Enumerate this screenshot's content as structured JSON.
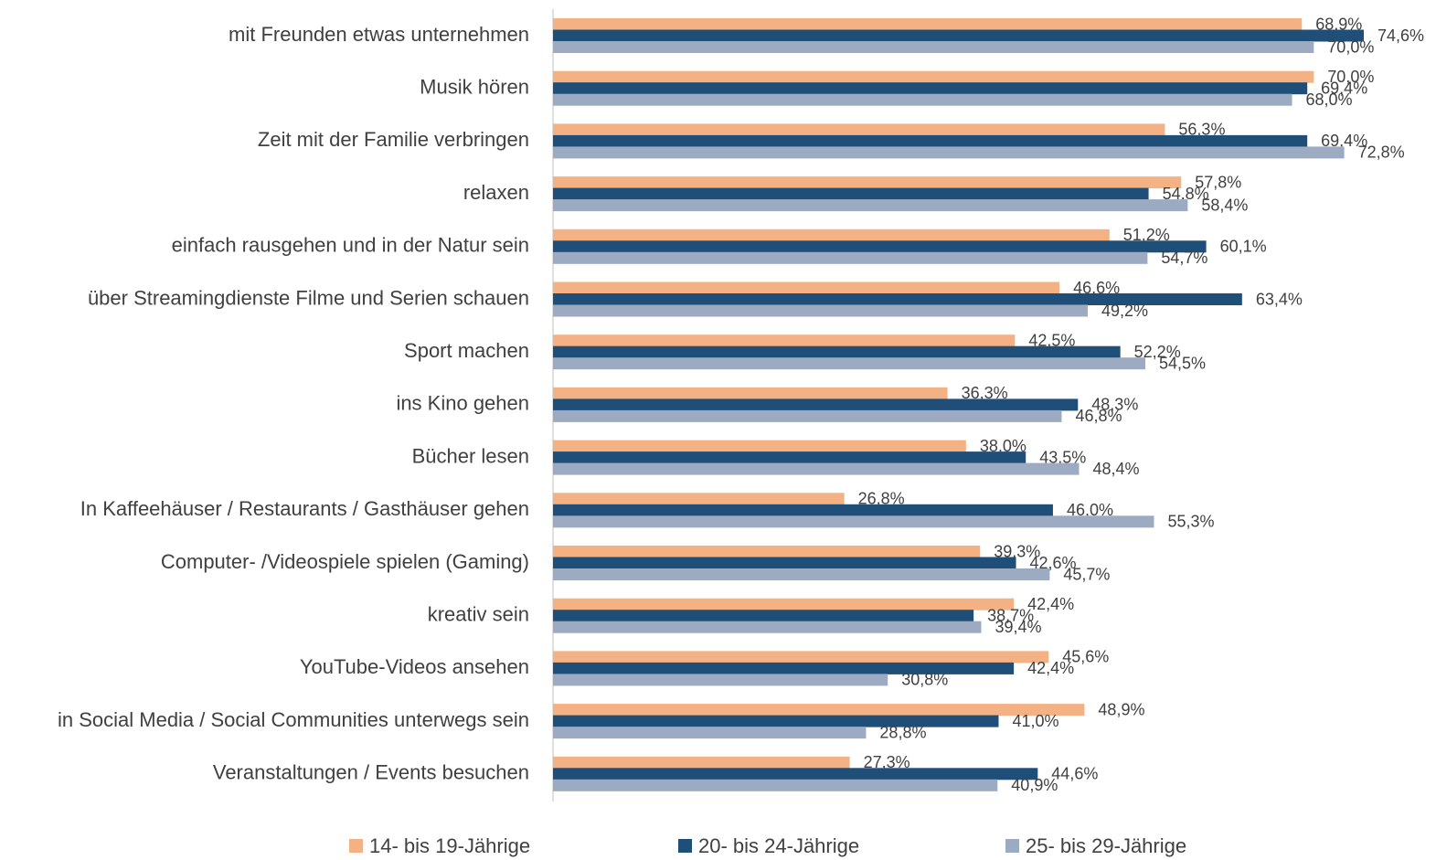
{
  "chart_data": {
    "type": "bar",
    "orientation": "horizontal",
    "categories": [
      "mit Freunden etwas unternehmen",
      "Musik hören",
      "Zeit mit der Familie verbringen",
      "relaxen",
      "einfach rausgehen und in der Natur sein",
      "über Streamingdienste Filme und Serien schauen",
      "Sport machen",
      "ins Kino gehen",
      "Bücher lesen",
      "In Kaffeehäuser / Restaurants / Gasthäuser gehen",
      "Computer- /Videospiele spielen (Gaming)",
      "kreativ sein",
      "YouTube-Videos ansehen",
      "in Social Media / Social Communities unterwegs sein",
      "Veranstaltungen / Events besuchen"
    ],
    "series": [
      {
        "name": "14- bis 19-Jährige",
        "color": "#f4b183",
        "values": [
          68.9,
          70.0,
          56.3,
          57.8,
          51.2,
          46.6,
          42.5,
          36.3,
          38.0,
          26.8,
          39.3,
          42.4,
          45.6,
          48.9,
          27.3
        ],
        "value_labels": [
          "68,9%",
          "70,0%",
          "56,3%",
          "57,8%",
          "51,2%",
          "46,6%",
          "42,5%",
          "36,3%",
          "38,0%",
          "26,8%",
          "39,3%",
          "42,4%",
          "45,6%",
          "48,9%",
          "27,3%"
        ]
      },
      {
        "name": "20- bis 24-Jährige",
        "color": "#1f4e79",
        "values": [
          74.6,
          69.4,
          69.4,
          54.8,
          60.1,
          63.4,
          52.2,
          48.3,
          43.5,
          46.0,
          42.6,
          38.7,
          42.4,
          41.0,
          44.6
        ],
        "value_labels": [
          "74,6%",
          "69,4%",
          "69,4%",
          "54,8%",
          "60,1%",
          "63,4%",
          "52,2%",
          "48,3%",
          "43,5%",
          "46,0%",
          "42,6%",
          "38,7%",
          "42,4%",
          "41,0%",
          "44,6%"
        ]
      },
      {
        "name": "25- bis 29-Jährige",
        "color": "#9dabc2",
        "values": [
          70.0,
          68.0,
          72.8,
          58.4,
          54.7,
          49.2,
          54.5,
          46.8,
          48.4,
          55.3,
          45.7,
          39.4,
          30.8,
          28.8,
          40.9
        ],
        "value_labels": [
          "70,0%",
          "68,0%",
          "72,8%",
          "58,4%",
          "54,7%",
          "49,2%",
          "54,5%",
          "46,8%",
          "48,4%",
          "55,3%",
          "45,7%",
          "39,4%",
          "30,8%",
          "28,8%",
          "40,9%"
        ]
      }
    ],
    "legend": "bottom"
  }
}
